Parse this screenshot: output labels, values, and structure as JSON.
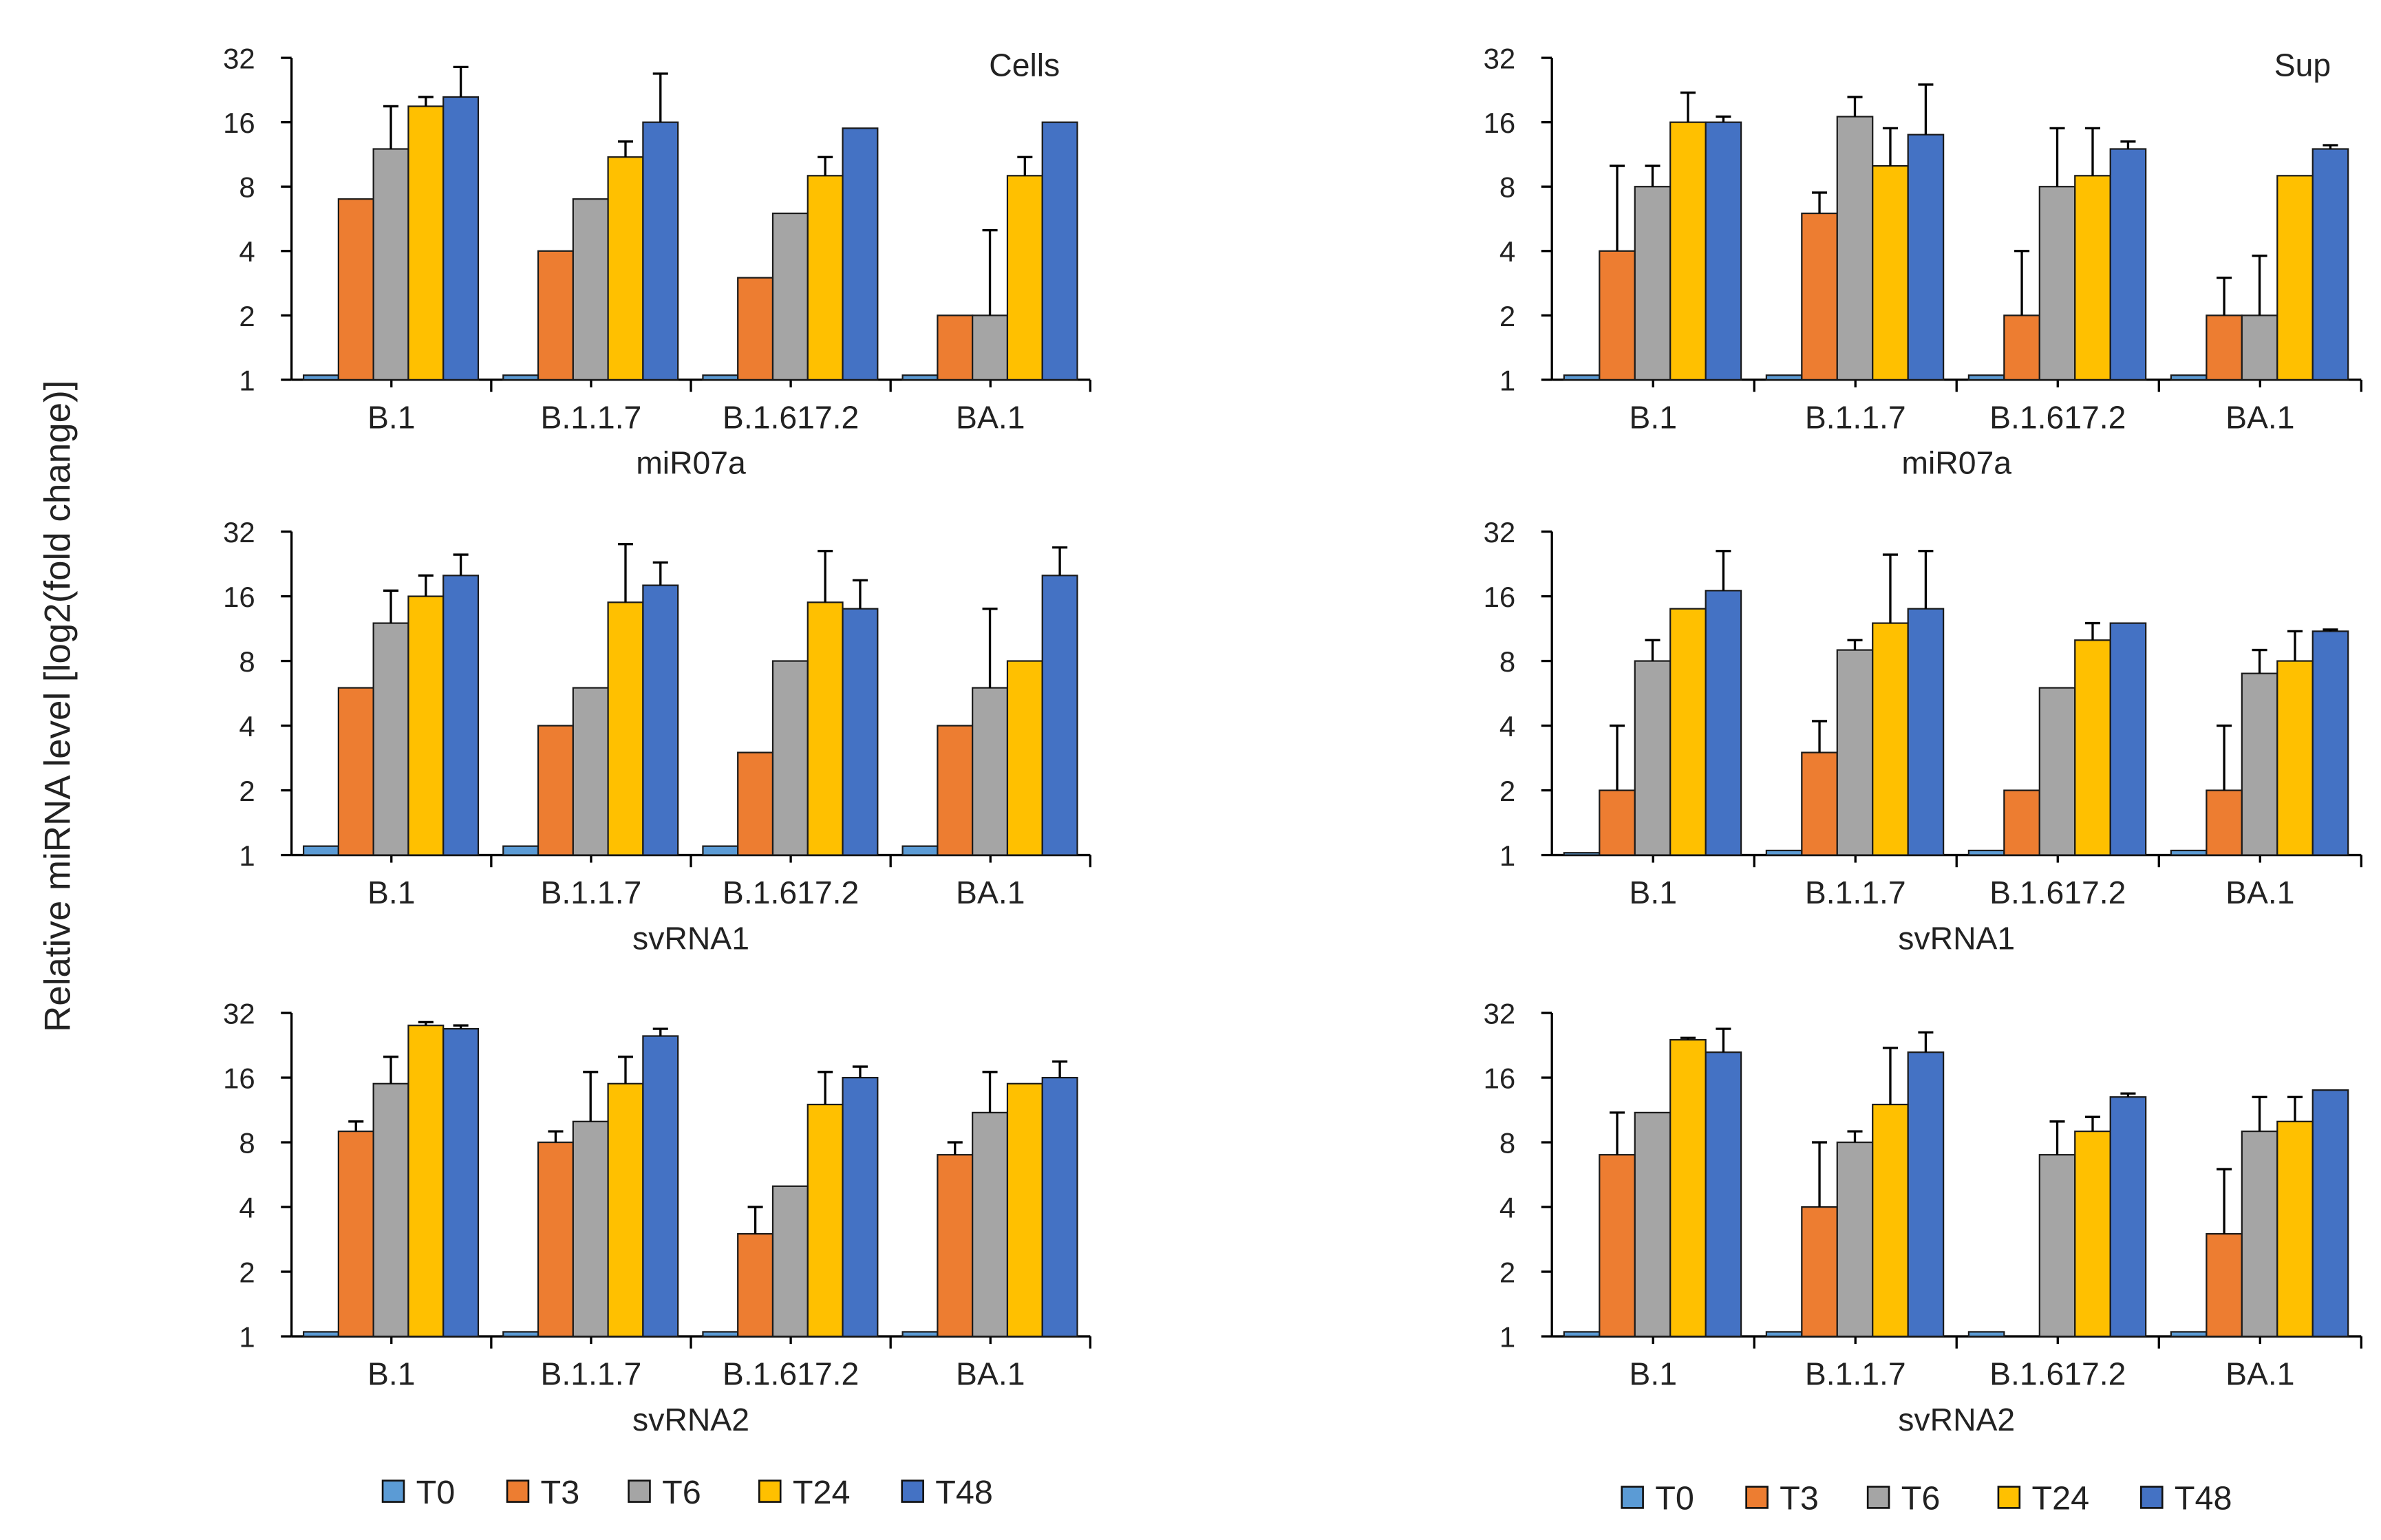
{
  "chart_data": {
    "type": "bar",
    "scale": "log2",
    "ylabel": "Relative miRNA level [log2(fold change)]",
    "yticks": [
      1,
      2,
      4,
      8,
      16,
      32
    ],
    "ylim": [
      1,
      32
    ],
    "categories": [
      "B.1",
      "B.1.1.7",
      "B.1.617.2",
      "BA.1"
    ],
    "series_names": [
      "T0",
      "T3",
      "T6",
      "T24",
      "T48"
    ],
    "colors": [
      "#5b9bd5",
      "#ed7d31",
      "#a5a5a5",
      "#ffc000",
      "#4472c4"
    ],
    "legend_position": "bottom",
    "panels": [
      {
        "title": "Cells",
        "xlabel": "miR07a",
        "col": 0,
        "row": 0,
        "values": [
          [
            1.05,
            7,
            12,
            19,
            21
          ],
          [
            1.05,
            4,
            7,
            11,
            16
          ],
          [
            1.05,
            3,
            6,
            9,
            15
          ],
          [
            1.05,
            2,
            2,
            9,
            16
          ]
        ],
        "err_top": [
          [
            null,
            null,
            19,
            21,
            29
          ],
          [
            null,
            null,
            null,
            13,
            27
          ],
          [
            null,
            null,
            null,
            11,
            null
          ],
          [
            null,
            null,
            5,
            11,
            null
          ]
        ]
      },
      {
        "title": "Sup",
        "xlabel": "miR07a",
        "col": 1,
        "row": 0,
        "values": [
          [
            1.05,
            4,
            8,
            16,
            16
          ],
          [
            1.05,
            6,
            17,
            10,
            14
          ],
          [
            1.05,
            2,
            8,
            9,
            12
          ],
          [
            1.05,
            2,
            2,
            9,
            12
          ]
        ],
        "err_top": [
          [
            null,
            10,
            10,
            22,
            17
          ],
          [
            null,
            7.5,
            21,
            15,
            24
          ],
          [
            null,
            4,
            15,
            15,
            13
          ],
          [
            null,
            3,
            3.8,
            null,
            12.5
          ]
        ]
      },
      {
        "title": "",
        "xlabel": "svRNA1",
        "col": 0,
        "row": 1,
        "values": [
          [
            1.1,
            6,
            12,
            16,
            20
          ],
          [
            1.1,
            4,
            6,
            15,
            18
          ],
          [
            1.1,
            3,
            8,
            15,
            14
          ],
          [
            1.1,
            4,
            6,
            8,
            20
          ]
        ],
        "err_top": [
          [
            null,
            null,
            17,
            20,
            25
          ],
          [
            null,
            null,
            null,
            28,
            23
          ],
          [
            null,
            null,
            null,
            26,
            19
          ],
          [
            null,
            null,
            14,
            null,
            27
          ]
        ]
      },
      {
        "title": "",
        "xlabel": "svRNA1",
        "col": 1,
        "row": 1,
        "values": [
          [
            1.02,
            2,
            8,
            14,
            17
          ],
          [
            1.05,
            3,
            9,
            12,
            14
          ],
          [
            1.05,
            2,
            6,
            10,
            12
          ],
          [
            1.05,
            2,
            7,
            8,
            11
          ]
        ],
        "err_top": [
          [
            null,
            4,
            10,
            null,
            26
          ],
          [
            null,
            4.2,
            10,
            25,
            26
          ],
          [
            null,
            null,
            null,
            12,
            null
          ],
          [
            null,
            4,
            9,
            11,
            11.2
          ]
        ]
      },
      {
        "title": "",
        "xlabel": "svRNA2",
        "col": 0,
        "row": 2,
        "values": [
          [
            1.05,
            9,
            15,
            28,
            27
          ],
          [
            1.05,
            8,
            10,
            15,
            25
          ],
          [
            1.05,
            3,
            5,
            12,
            16
          ],
          [
            1.05,
            7,
            11,
            15,
            16
          ]
        ],
        "err_top": [
          [
            null,
            10,
            20,
            29,
            28
          ],
          [
            null,
            9,
            17,
            20,
            27
          ],
          [
            null,
            4,
            null,
            17,
            18
          ],
          [
            null,
            8,
            17,
            null,
            19
          ]
        ]
      },
      {
        "title": "",
        "xlabel": "svRNA2",
        "col": 1,
        "row": 2,
        "values": [
          [
            1.05,
            7,
            11,
            24,
            21
          ],
          [
            1.05,
            4,
            8,
            12,
            21
          ],
          [
            1.05,
            null,
            7,
            9,
            13
          ],
          [
            1.05,
            3,
            9,
            10,
            14
          ]
        ],
        "err_top": [
          [
            null,
            11,
            null,
            24.5,
            27
          ],
          [
            null,
            8,
            9,
            22,
            26
          ],
          [
            null,
            null,
            10,
            10.5,
            13.5
          ],
          [
            null,
            6,
            13,
            13,
            null
          ]
        ]
      }
    ]
  }
}
